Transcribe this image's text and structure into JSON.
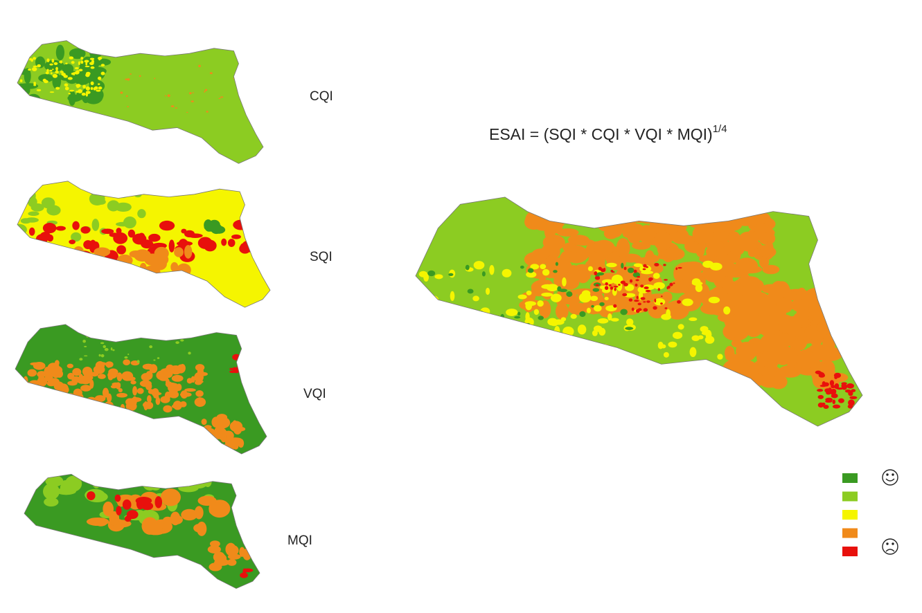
{
  "small_maps": [
    {
      "label": "CQI"
    },
    {
      "label": "SQI"
    },
    {
      "label": "VQI"
    },
    {
      "label": "MQI"
    }
  ],
  "formula": {
    "text": "ESAI = (SQI * CQI * VQI * MQI)",
    "exponent": "1/4"
  },
  "legend": {
    "colors": [
      "#3a9a22",
      "#8ccc22",
      "#f5f500",
      "#f08a1a",
      "#e8100c"
    ]
  }
}
